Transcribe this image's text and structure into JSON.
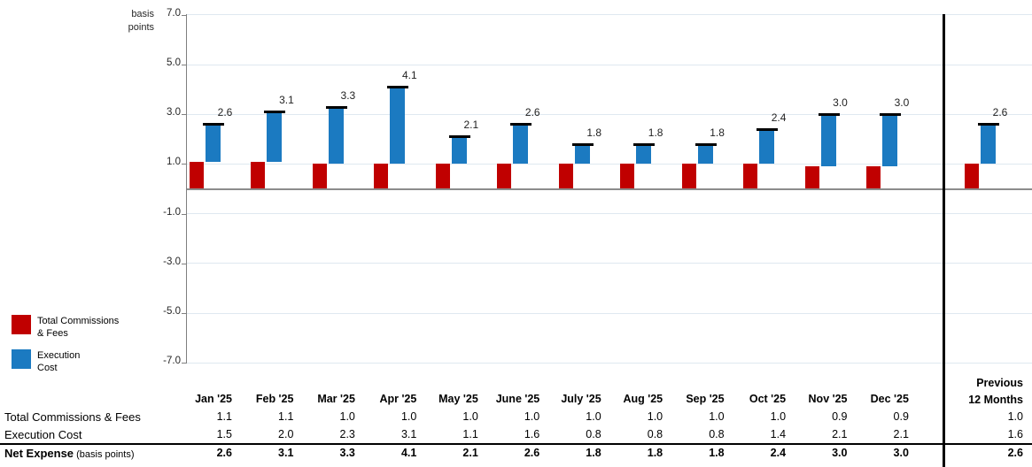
{
  "chart_data": {
    "type": "bar",
    "stacked": true,
    "title": "",
    "ylabel_lines": [
      "basis",
      "points"
    ],
    "ylim": [
      -7.0,
      7.0
    ],
    "yticks": [
      "7.0",
      "5.0",
      "3.0",
      "1.0",
      "-1.0",
      "-3.0",
      "-5.0",
      "-7.0"
    ],
    "grid": true,
    "legend_position": "left",
    "categories": [
      "Jan '25",
      "Feb '25",
      "Mar '25",
      "Apr '25",
      "May '25",
      "June '25",
      "July '25",
      "Aug '25",
      "Sep '25",
      "Oct '25",
      "Nov '25",
      "Dec '25"
    ],
    "final_category": {
      "line1": "Previous",
      "line2": "12 Months"
    },
    "series": [
      {
        "name": "Total Commissions & Fees",
        "color": "#c00000",
        "values": [
          1.1,
          1.1,
          1.0,
          1.0,
          1.0,
          1.0,
          1.0,
          1.0,
          1.0,
          1.0,
          0.9,
          0.9
        ],
        "final_value": 1.0
      },
      {
        "name": "Execution Cost",
        "color": "#1b7ac1",
        "values": [
          1.5,
          2.0,
          2.3,
          3.1,
          1.1,
          1.6,
          0.8,
          0.8,
          0.8,
          1.4,
          2.1,
          2.1
        ],
        "final_value": 1.6
      }
    ],
    "totals": {
      "name": "Net Expense",
      "marker_color": "#000000",
      "values": [
        2.6,
        3.1,
        3.3,
        4.1,
        2.1,
        2.6,
        1.8,
        1.8,
        1.8,
        2.4,
        3.0,
        3.0
      ],
      "final_value": 2.6
    }
  },
  "legend": {
    "items": [
      {
        "label_lines": [
          "Total Commissions",
          "& Fees"
        ],
        "color": "#c00000"
      },
      {
        "label_lines": [
          "Execution",
          "Cost"
        ],
        "color": "#1b7ac1"
      }
    ]
  },
  "table": {
    "rows": [
      {
        "label": "Total Commissions & Fees"
      },
      {
        "label": "Execution Cost"
      },
      {
        "label": "Net Expense",
        "label_suffix": " (basis points)"
      }
    ]
  }
}
